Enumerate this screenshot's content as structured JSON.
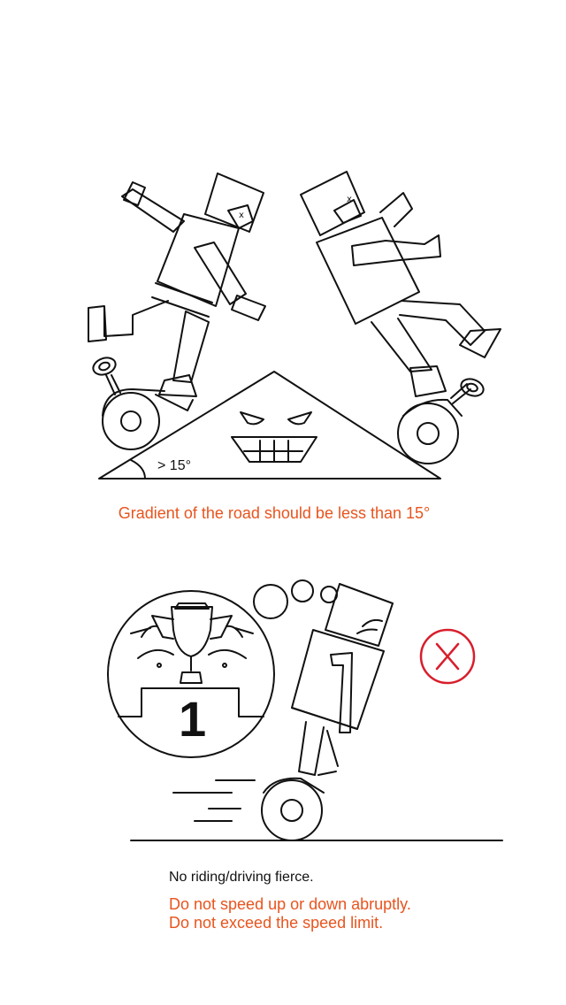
{
  "colors": {
    "accent": "#e8541e",
    "line": "#111111",
    "danger": "#d81e2c",
    "background": "#ffffff"
  },
  "scene_slope": {
    "angle_label": "> 15°",
    "caption": "Gradient of the road should be less than 15°"
  },
  "scene_speed": {
    "trophy_number": "1",
    "forbidden_icon": "cross-circle-icon",
    "caption": "No riding/driving fierce.",
    "warnings": [
      "Do not speed up or down abruptly.",
      "Do not exceed the speed limit."
    ]
  }
}
